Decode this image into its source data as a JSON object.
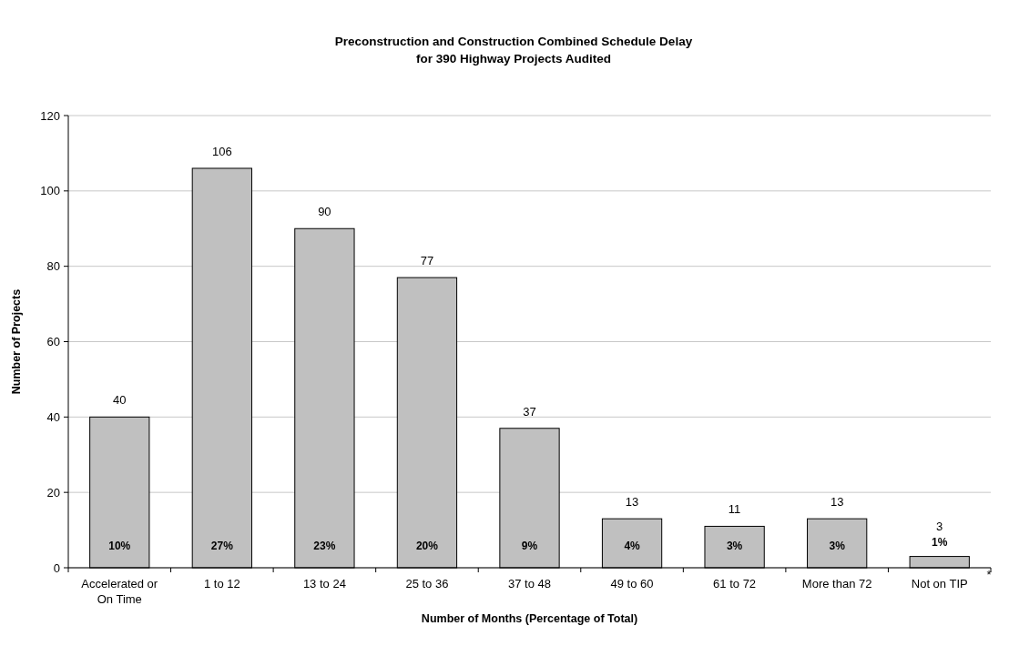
{
  "chart_data": {
    "type": "bar",
    "title": "Preconstruction and Construction Combined Schedule Delay\nfor 390 Highway Projects Audited",
    "xlabel": "Number of Months (Percentage of Total)",
    "ylabel": "Number of Projects",
    "categories": [
      "Accelerated or On Time",
      "1 to 12",
      "13 to 24",
      "25 to 36",
      "37 to 48",
      "49 to 60",
      "61 to 72",
      "More than 72",
      "Not on TIP"
    ],
    "values": [
      40,
      106,
      90,
      77,
      37,
      13,
      11,
      13,
      3
    ],
    "color": "#c0c0c0",
    "data_labels": true,
    "ylim": [
      0,
      120
    ],
    "yticks": [
      0,
      20,
      40,
      60,
      80,
      100,
      120
    ],
    "grid": "y",
    "annotations": [
      "10%",
      "27%",
      "23%",
      "20%",
      "9%",
      "4%",
      "3%",
      "3%",
      "1%",
      "*"
    ]
  }
}
